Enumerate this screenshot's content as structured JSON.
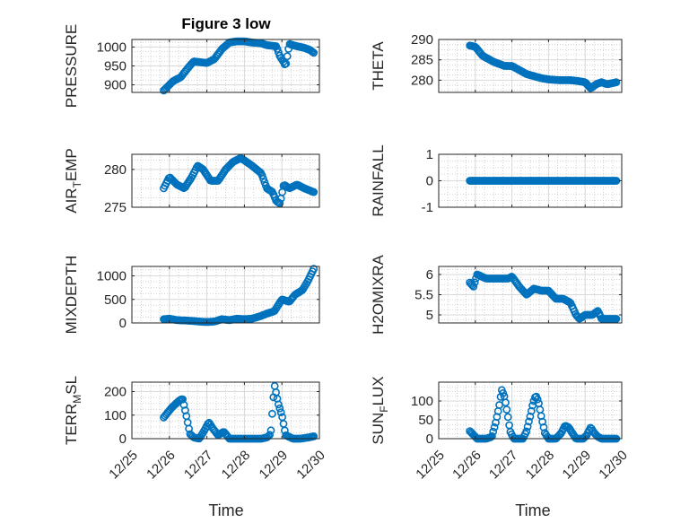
{
  "figure": {
    "title": "Figure 3 low",
    "xlabel": "Time",
    "marker_color": "#0072BD"
  },
  "chart_data": [
    {
      "type": "scatter",
      "name": "PRESSURE",
      "ylabel": "PRESSURE",
      "sub": "",
      "xlim": [
        0,
        5
      ],
      "ylim": [
        880,
        1020
      ],
      "yticks": [
        900,
        950,
        1000
      ],
      "x_start": 0.85,
      "x_end": 4.85,
      "keys": [
        [
          0.85,
          885
        ],
        [
          0.95,
          895
        ],
        [
          1.1,
          910
        ],
        [
          1.3,
          920
        ],
        [
          1.5,
          945
        ],
        [
          1.65,
          962
        ],
        [
          1.8,
          960
        ],
        [
          2.0,
          958
        ],
        [
          2.2,
          968
        ],
        [
          2.4,
          995
        ],
        [
          2.6,
          1012
        ],
        [
          2.8,
          1015
        ],
        [
          3.0,
          1015
        ],
        [
          3.2,
          1012
        ],
        [
          3.45,
          1010
        ],
        [
          3.6,
          1005
        ],
        [
          3.85,
          1002
        ],
        [
          3.95,
          975
        ],
        [
          4.05,
          960
        ],
        [
          4.1,
          950
        ],
        [
          4.2,
          1008
        ],
        [
          4.4,
          1002
        ],
        [
          4.6,
          998
        ],
        [
          4.75,
          992
        ],
        [
          4.85,
          985
        ]
      ]
    },
    {
      "type": "scatter",
      "name": "THETA",
      "ylabel": "THETA",
      "sub": "",
      "xlim": [
        0,
        5
      ],
      "ylim": [
        277,
        290
      ],
      "yticks": [
        280,
        285,
        290
      ],
      "x_start": 0.85,
      "x_end": 4.85,
      "keys": [
        [
          0.85,
          288.5
        ],
        [
          1.0,
          288.2
        ],
        [
          1.2,
          286
        ],
        [
          1.5,
          284.5
        ],
        [
          1.8,
          283.5
        ],
        [
          2.0,
          283.5
        ],
        [
          2.2,
          282.5
        ],
        [
          2.4,
          281.5
        ],
        [
          2.6,
          281
        ],
        [
          2.8,
          280.5
        ],
        [
          3.0,
          280.2
        ],
        [
          3.3,
          280
        ],
        [
          3.6,
          280
        ],
        [
          3.8,
          279.8
        ],
        [
          4.0,
          279.5
        ],
        [
          4.15,
          278
        ],
        [
          4.3,
          279
        ],
        [
          4.45,
          279.5
        ],
        [
          4.6,
          279
        ],
        [
          4.85,
          279.5
        ]
      ]
    },
    {
      "type": "scatter",
      "name": "AIR_TEMP",
      "ylabel": "AIR",
      "sub": "T",
      "ylabel2": "EMP",
      "xlim": [
        0,
        5
      ],
      "ylim": [
        275,
        282
      ],
      "yticks": [
        275,
        280
      ],
      "x_start": 0.85,
      "x_end": 4.85,
      "keys": [
        [
          0.85,
          277.5
        ],
        [
          1.0,
          279
        ],
        [
          1.2,
          278
        ],
        [
          1.4,
          277.5
        ],
        [
          1.6,
          279
        ],
        [
          1.75,
          280.5
        ],
        [
          1.9,
          280
        ],
        [
          2.1,
          278.5
        ],
        [
          2.3,
          278.5
        ],
        [
          2.5,
          280
        ],
        [
          2.7,
          281
        ],
        [
          2.9,
          281.5
        ],
        [
          3.0,
          281.2
        ],
        [
          3.2,
          280.5
        ],
        [
          3.45,
          279.5
        ],
        [
          3.6,
          277.5
        ],
        [
          3.75,
          277
        ],
        [
          3.85,
          275.8
        ],
        [
          3.95,
          275.5
        ],
        [
          4.05,
          278
        ],
        [
          4.2,
          277.5
        ],
        [
          4.4,
          278
        ],
        [
          4.6,
          277.5
        ],
        [
          4.85,
          277
        ]
      ]
    },
    {
      "type": "scatter",
      "name": "RAINFALL",
      "ylabel": "RAINFALL",
      "sub": "",
      "xlim": [
        0,
        5
      ],
      "ylim": [
        -1,
        1
      ],
      "yticks": [
        -1,
        0,
        1
      ],
      "x_start": 0.85,
      "x_end": 4.85,
      "keys": [
        [
          0.85,
          0
        ],
        [
          4.85,
          0
        ]
      ]
    },
    {
      "type": "scatter",
      "name": "MIXDEPTH",
      "ylabel": "MIXDEPTH",
      "sub": "",
      "xlim": [
        0,
        5
      ],
      "ylim": [
        0,
        1200
      ],
      "yticks": [
        0,
        500,
        1000
      ],
      "x_start": 0.85,
      "x_end": 4.85,
      "keys": [
        [
          0.85,
          80
        ],
        [
          1.0,
          90
        ],
        [
          1.2,
          60
        ],
        [
          1.5,
          50
        ],
        [
          1.8,
          30
        ],
        [
          2.0,
          20
        ],
        [
          2.2,
          30
        ],
        [
          2.4,
          80
        ],
        [
          2.6,
          60
        ],
        [
          2.8,
          90
        ],
        [
          3.0,
          80
        ],
        [
          3.2,
          90
        ],
        [
          3.45,
          150
        ],
        [
          3.6,
          200
        ],
        [
          3.8,
          250
        ],
        [
          4.0,
          500
        ],
        [
          4.2,
          450
        ],
        [
          4.35,
          600
        ],
        [
          4.55,
          700
        ],
        [
          4.7,
          900
        ],
        [
          4.85,
          1150
        ]
      ]
    },
    {
      "type": "scatter",
      "name": "H2OMIXRA",
      "ylabel": "H2OMIXRA",
      "sub": "",
      "xlim": [
        0,
        5
      ],
      "ylim": [
        4.8,
        6.2
      ],
      "yticks": [
        5,
        5.5,
        6
      ],
      "x_start": 0.85,
      "x_end": 4.85,
      "keys": [
        [
          0.85,
          5.8
        ],
        [
          0.95,
          5.7
        ],
        [
          1.05,
          6.0
        ],
        [
          1.3,
          5.9
        ],
        [
          1.6,
          5.9
        ],
        [
          1.9,
          5.9
        ],
        [
          2.0,
          5.95
        ],
        [
          2.2,
          5.7
        ],
        [
          2.4,
          5.5
        ],
        [
          2.6,
          5.65
        ],
        [
          2.8,
          5.6
        ],
        [
          3.0,
          5.6
        ],
        [
          3.2,
          5.4
        ],
        [
          3.4,
          5.4
        ],
        [
          3.6,
          5.3
        ],
        [
          3.75,
          5.0
        ],
        [
          3.85,
          4.9
        ],
        [
          4.0,
          5.0
        ],
        [
          4.2,
          5.0
        ],
        [
          4.35,
          5.1
        ],
        [
          4.45,
          4.9
        ]
      ]
    },
    {
      "type": "scatter",
      "name": "TERR_MSL",
      "ylabel": "TERR",
      "sub": "M",
      "ylabel2": "SL",
      "xlim": [
        0,
        5
      ],
      "ylim": [
        0,
        240
      ],
      "yticks": [
        0,
        100,
        200
      ],
      "x_start": 0.85,
      "x_end": 4.85,
      "keys": [
        [
          0.85,
          90
        ],
        [
          0.95,
          110
        ],
        [
          1.05,
          130
        ],
        [
          1.15,
          145
        ],
        [
          1.25,
          160
        ],
        [
          1.35,
          170
        ],
        [
          1.45,
          100
        ],
        [
          1.55,
          20
        ],
        [
          1.65,
          5
        ],
        [
          1.8,
          0
        ],
        [
          1.95,
          40
        ],
        [
          2.05,
          70
        ],
        [
          2.15,
          45
        ],
        [
          2.3,
          15
        ],
        [
          2.45,
          30
        ],
        [
          2.6,
          0
        ],
        [
          2.9,
          0
        ],
        [
          3.2,
          0
        ],
        [
          3.45,
          0
        ],
        [
          3.6,
          5
        ],
        [
          3.7,
          20
        ],
        [
          3.8,
          230
        ],
        [
          3.9,
          150
        ],
        [
          4.0,
          100
        ],
        [
          4.1,
          15
        ],
        [
          4.3,
          0
        ],
        [
          4.5,
          0
        ],
        [
          4.7,
          5
        ],
        [
          4.85,
          10
        ]
      ]
    },
    {
      "type": "scatter",
      "name": "SUN_FLUX",
      "ylabel": "SUN",
      "sub": "F",
      "ylabel2": "LUX",
      "xlim": [
        0,
        5
      ],
      "ylim": [
        0,
        150
      ],
      "yticks": [
        0,
        50,
        100
      ],
      "x_start": 0.85,
      "x_end": 4.85,
      "keys": [
        [
          0.85,
          20
        ],
        [
          0.95,
          10
        ],
        [
          1.05,
          0
        ],
        [
          1.3,
          0
        ],
        [
          1.45,
          5
        ],
        [
          1.55,
          40
        ],
        [
          1.65,
          85
        ],
        [
          1.72,
          130
        ],
        [
          1.8,
          110
        ],
        [
          1.88,
          65
        ],
        [
          1.95,
          20
        ],
        [
          2.05,
          0
        ],
        [
          2.3,
          0
        ],
        [
          2.4,
          20
        ],
        [
          2.5,
          60
        ],
        [
          2.58,
          95
        ],
        [
          2.65,
          115
        ],
        [
          2.72,
          100
        ],
        [
          2.8,
          60
        ],
        [
          2.9,
          15
        ],
        [
          3.0,
          0
        ],
        [
          3.2,
          0
        ],
        [
          3.35,
          15
        ],
        [
          3.45,
          35
        ],
        [
          3.55,
          30
        ],
        [
          3.65,
          15
        ],
        [
          3.75,
          0
        ],
        [
          3.95,
          0
        ],
        [
          4.05,
          10
        ],
        [
          4.15,
          30
        ],
        [
          4.25,
          15
        ],
        [
          4.35,
          5
        ],
        [
          4.45,
          0
        ]
      ]
    }
  ],
  "xticks": [
    {
      "value": 0,
      "label": "12/25"
    },
    {
      "value": 1,
      "label": "12/26"
    },
    {
      "value": 2,
      "label": "12/27"
    },
    {
      "value": 3,
      "label": "12/28"
    },
    {
      "value": 4,
      "label": "12/29"
    },
    {
      "value": 5,
      "label": "12/30"
    }
  ]
}
